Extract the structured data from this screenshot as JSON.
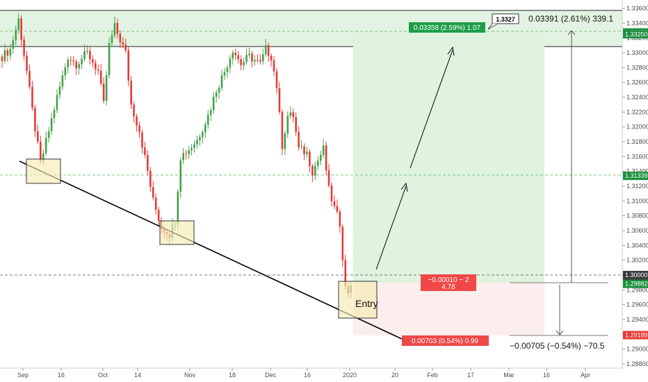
{
  "chart_data": {
    "type": "candlestick",
    "y_axis": {
      "range": [
        1.2874,
        1.3374
      ],
      "ticks": [
        "1.33600",
        "1.33400",
        "1.33200",
        "1.33000",
        "1.32800",
        "1.32600",
        "1.32400",
        "1.32200",
        "1.32000",
        "1.31800",
        "1.31600",
        "1.31400",
        "1.31200",
        "1.31000",
        "1.30800",
        "1.30600",
        "1.30400",
        "1.30200",
        "1.30000",
        "1.29800",
        "1.29600",
        "1.29400",
        "1.29200",
        "1.29000",
        "1.28800"
      ],
      "side": "right"
    },
    "x_axis": {
      "ticks": [
        {
          "label": "Sep",
          "bold": false
        },
        {
          "label": "16",
          "bold": false
        },
        {
          "label": "Oct",
          "bold": false
        },
        {
          "label": "14",
          "bold": false
        },
        {
          "label": "Nov",
          "bold": false
        },
        {
          "label": "18",
          "bold": false
        },
        {
          "label": "Dec",
          "bold": false
        },
        {
          "label": "16",
          "bold": false
        },
        {
          "label": "2020",
          "bold": true
        },
        {
          "label": "20",
          "bold": false
        },
        {
          "label": "Feb",
          "bold": false
        },
        {
          "label": "17",
          "bold": false
        },
        {
          "label": "Mar",
          "bold": false
        },
        {
          "label": "16",
          "bold": false
        },
        {
          "label": "Apr",
          "bold": false
        }
      ]
    },
    "price_tags": [
      {
        "label": "1.33275",
        "color": "#1b8e3e"
      },
      {
        "label": "1.33250",
        "color": "#1b8e3e"
      },
      {
        "label": "1.31339",
        "color": "#1b8e3e"
      },
      {
        "label": "1.30000",
        "color": "#3a3a3a"
      },
      {
        "label": "1.29892",
        "color": "#3a3a3a"
      },
      {
        "label": "1.29882",
        "color": "#1b8e3e"
      },
      {
        "label": "1.29189",
        "color": "#e53935"
      }
    ],
    "position": {
      "entry": 1.2989,
      "target": 1.3325,
      "stop": 1.2919,
      "target_label": "0.03358 (2.59%) 1.07",
      "stop_label": "0.00703 (0.54%) 0.99",
      "center_label_1": "−0.00010 ~ 2",
      "center_label_2": "4.78"
    },
    "measure": {
      "up_label": "0.03391 (2.61%) 339.1",
      "down_label": "−0.00705 (−0.54%) −70.5",
      "cursor_value": "1.3327"
    },
    "entry_label": "Entry",
    "colors": {
      "up": "#26a69a",
      "up_body": "#4caf50",
      "down": "#ef5350",
      "zone_green": "#d9f2d9",
      "zone_red": "#fdecec",
      "resistance": "#e0f2e0"
    }
  }
}
